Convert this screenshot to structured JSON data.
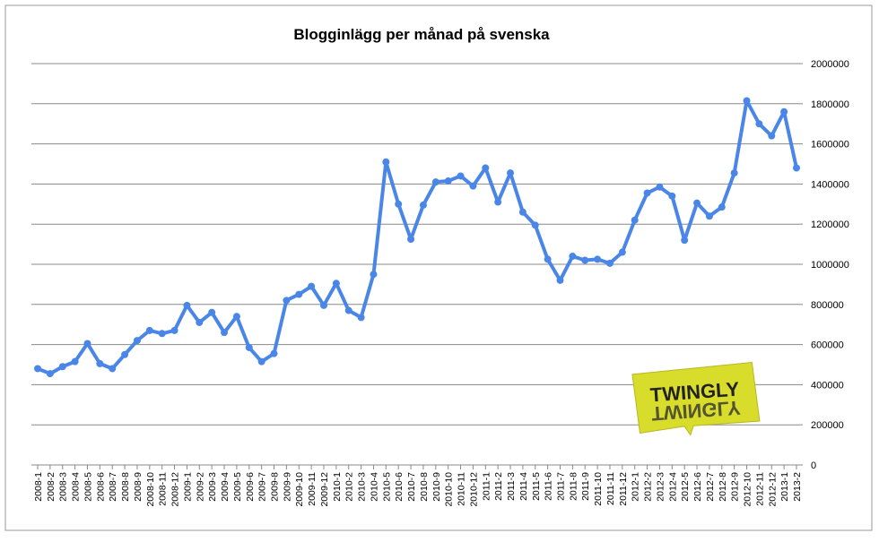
{
  "chart_data": {
    "type": "line",
    "title": "Blogginlägg per månad på svenska",
    "categories": [
      "2008-1",
      "2008-2",
      "2008-3",
      "2008-4",
      "2008-5",
      "2008-6",
      "2008-7",
      "2008-8",
      "2008-9",
      "2008-10",
      "2008-11",
      "2008-12",
      "2009-1",
      "2009-2",
      "2009-3",
      "2009-4",
      "2009-5",
      "2009-6",
      "2009-7",
      "2009-8",
      "2009-9",
      "2009-10",
      "2009-11",
      "2009-12",
      "2010-1",
      "2010-2",
      "2010-3",
      "2010-4",
      "2010-5",
      "2010-6",
      "2010-7",
      "2010-8",
      "2010-9",
      "2010-10",
      "2010-11",
      "2010-12",
      "2011-1",
      "2011-2",
      "2011-3",
      "2011-4",
      "2011-5",
      "2011-6",
      "2011-7",
      "2011-8",
      "2011-9",
      "2011-10",
      "2011-11",
      "2011-12",
      "2012-1",
      "2012-2",
      "2012-3",
      "2012-4",
      "2012-5",
      "2012-6",
      "2012-7",
      "2012-8",
      "2012-9",
      "2012-10",
      "2012-11",
      "2012-12",
      "2013-1",
      "2013-2"
    ],
    "series": [
      {
        "color": "#4a86e8",
        "values": [
          480000,
          455000,
          490000,
          515000,
          605000,
          505000,
          480000,
          550000,
          620000,
          670000,
          655000,
          670000,
          795000,
          710000,
          760000,
          660000,
          740000,
          585000,
          515000,
          555000,
          820000,
          850000,
          890000,
          795000,
          905000,
          770000,
          735000,
          950000,
          1510000,
          1300000,
          1125000,
          1295000,
          1410000,
          1415000,
          1440000,
          1390000,
          1480000,
          1310000,
          1455000,
          1260000,
          1195000,
          1025000,
          920000,
          1040000,
          1020000,
          1025000,
          1005000,
          1060000,
          1220000,
          1355000,
          1385000,
          1340000,
          1120000,
          1305000,
          1240000,
          1285000,
          1455000,
          1815000,
          1700000,
          1640000,
          1760000,
          1480000
        ]
      }
    ],
    "ylim": [
      0,
      2000000
    ],
    "yticks": [
      0,
      200000,
      400000,
      600000,
      800000,
      1000000,
      1200000,
      1400000,
      1600000,
      1800000,
      2000000
    ],
    "grid": true,
    "logo": "TWINGLY"
  }
}
